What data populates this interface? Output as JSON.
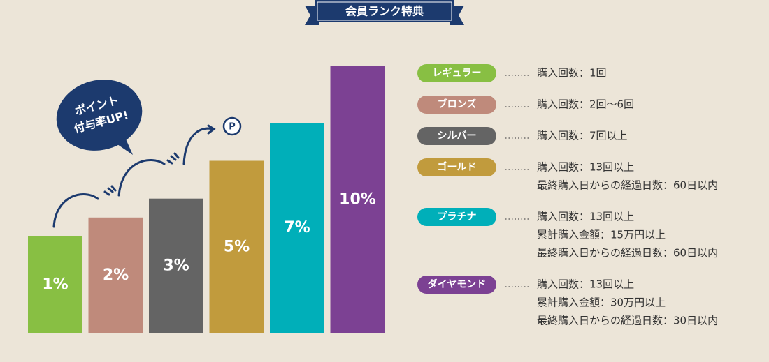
{
  "chart_data": {
    "type": "bar",
    "title": "会員ランク特典",
    "annotation": [
      "ポイント",
      "付与率UP!"
    ],
    "categories": [
      "レギュラー",
      "ブロンズ",
      "シルバー",
      "ゴールド",
      "プラチナ",
      "ダイヤモンド"
    ],
    "series": [
      {
        "values": [
          1,
          2,
          3,
          5,
          7,
          10
        ],
        "value_labels": [
          "1%",
          "2%",
          "3%",
          "5%",
          "7%",
          "10%"
        ],
        "colors": [
          "#88bf43",
          "#bf8a7b",
          "#646464",
          "#c19b3d",
          "#00afb9",
          "#7c4193"
        ]
      }
    ],
    "descriptions": [
      [
        "購入回数：1回"
      ],
      [
        "購入回数：2回〜6回"
      ],
      [
        "購入回数：7回以上"
      ],
      [
        "購入回数：13回以上",
        "最終購入日からの経過日数：60日以内"
      ],
      [
        "購入回数：13回以上",
        "累計購入金額：15万円以上",
        "最終購入日からの経過日数：60日以内"
      ],
      [
        "購入回数：13回以上",
        "累計購入金額：30万円以上",
        "最終購入日からの経過日数：30日以内"
      ]
    ]
  }
}
